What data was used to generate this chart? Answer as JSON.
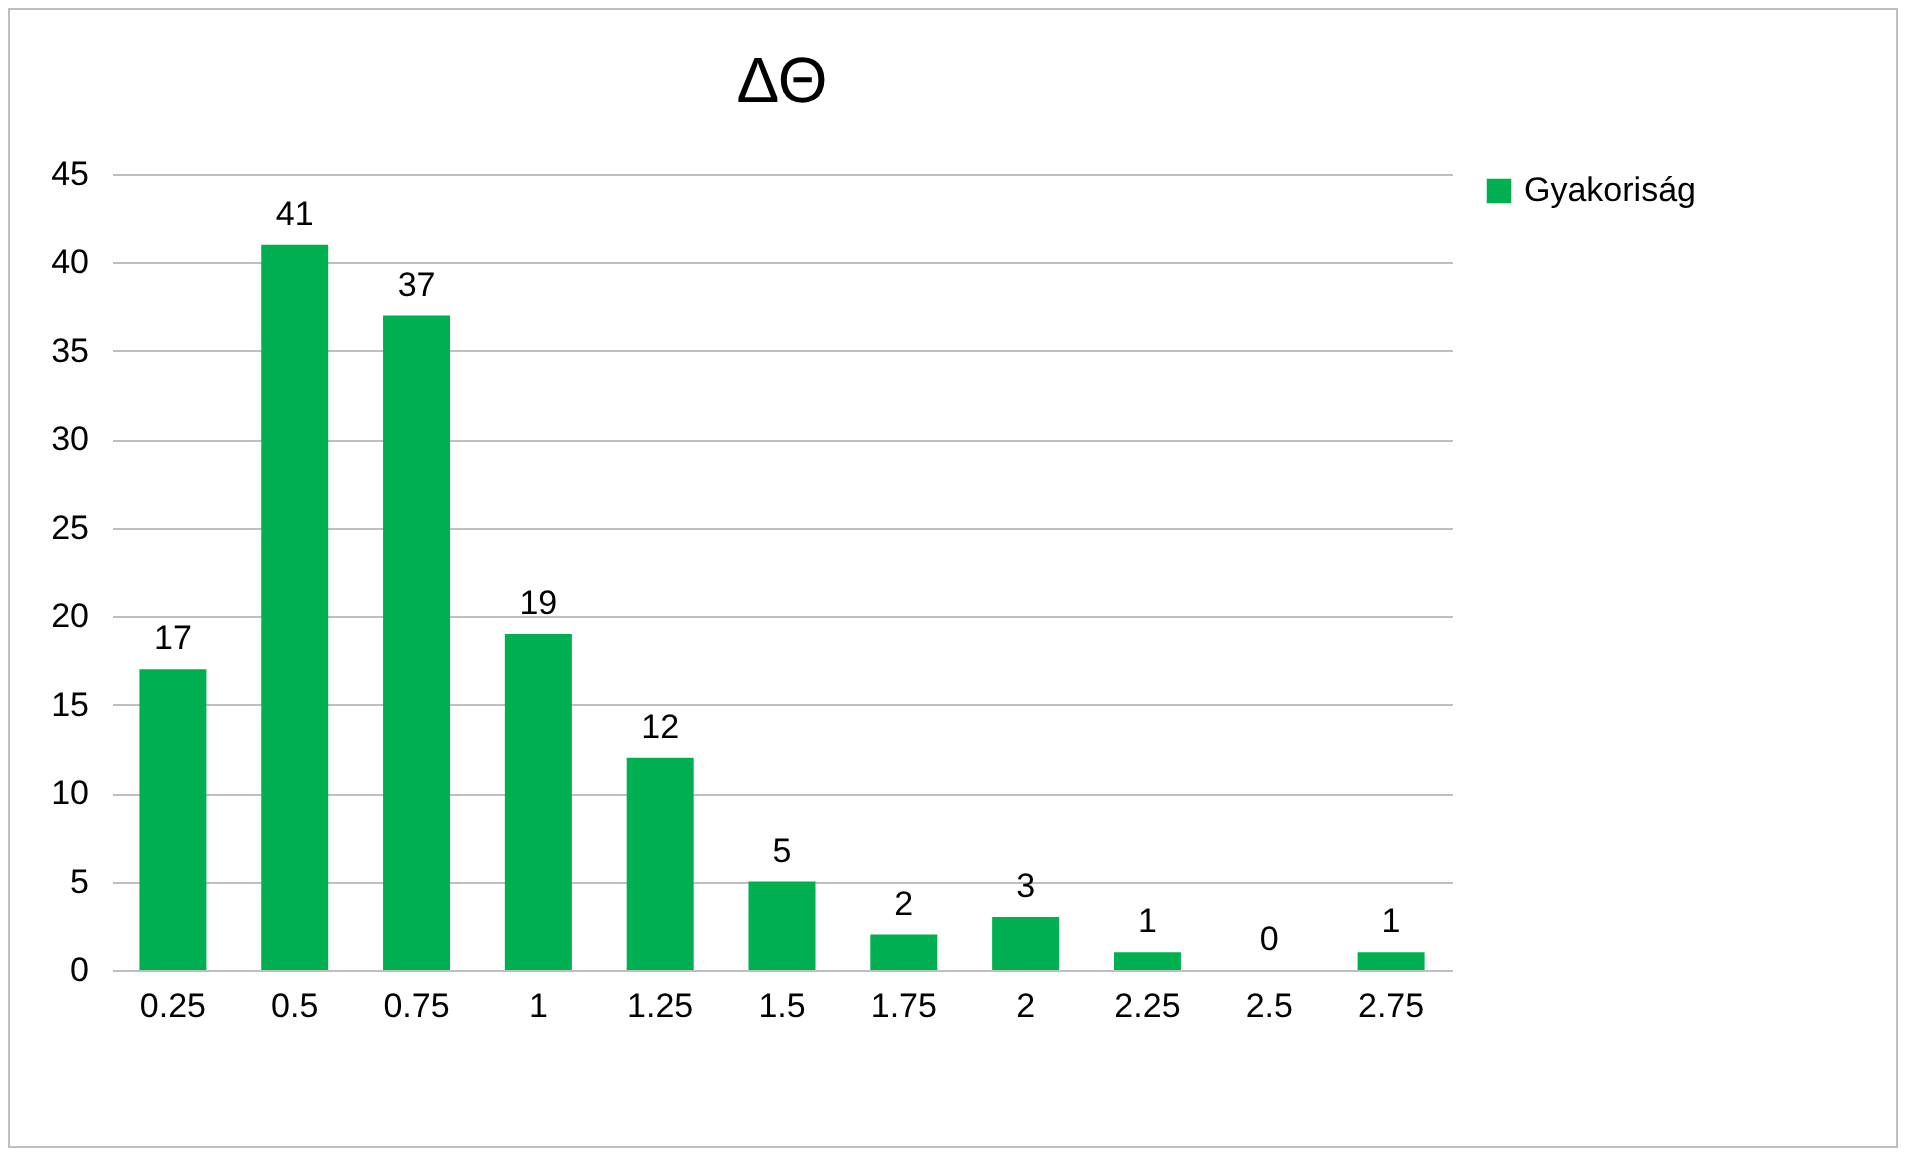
{
  "chart_data": {
    "type": "bar",
    "title": "ΔΘ",
    "categories": [
      "0.25",
      "0.5",
      "0.75",
      "1",
      "1.25",
      "1.5",
      "1.75",
      "2",
      "2.25",
      "2.5",
      "2.75"
    ],
    "series": [
      {
        "name": "Gyakoriság",
        "color": "#00b050",
        "values": [
          17,
          41,
          37,
          19,
          12,
          5,
          2,
          3,
          1,
          0,
          1
        ]
      }
    ],
    "ylim": [
      0,
      45
    ],
    "yticks": [
      0,
      5,
      10,
      15,
      20,
      25,
      30,
      35,
      40,
      45
    ],
    "grid": "y",
    "legend": "right",
    "data_labels": true
  }
}
